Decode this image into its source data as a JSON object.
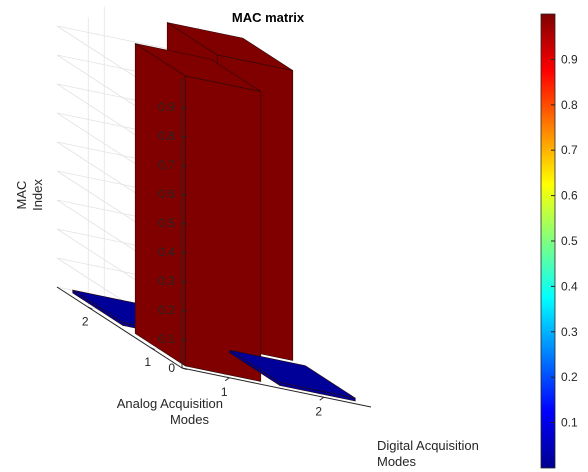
{
  "chart_data": {
    "type": "bar3",
    "title": "MAC matrix",
    "zlabel": [
      "MAC",
      "Index"
    ],
    "xlabel": [
      "Digital Acquisition",
      "Modes"
    ],
    "ylabel": [
      "Analog Acquisition",
      "Modes"
    ],
    "x_ticks": [
      "1",
      "2"
    ],
    "y_ticks": [
      "1",
      "2"
    ],
    "zlim": [
      0,
      1
    ],
    "z_ticks": [
      "0",
      "0.1",
      "0.2",
      "0.3",
      "0.4",
      "0.5",
      "0.6",
      "0.7",
      "0.8",
      "0.9"
    ],
    "values": [
      {
        "digital": 1,
        "analog": 1,
        "value": 1.0
      },
      {
        "digital": 2,
        "analog": 1,
        "value": 0.01
      },
      {
        "digital": 1,
        "analog": 2,
        "value": 0.01
      },
      {
        "digital": 2,
        "analog": 2,
        "value": 1.0
      }
    ],
    "grid": true,
    "colorbar": {
      "colormap": "jet",
      "range": [
        0,
        1
      ],
      "ticks": [
        "0.1",
        "0.2",
        "0.3",
        "0.4",
        "0.5",
        "0.6",
        "0.7",
        "0.8",
        "0.9"
      ]
    }
  }
}
